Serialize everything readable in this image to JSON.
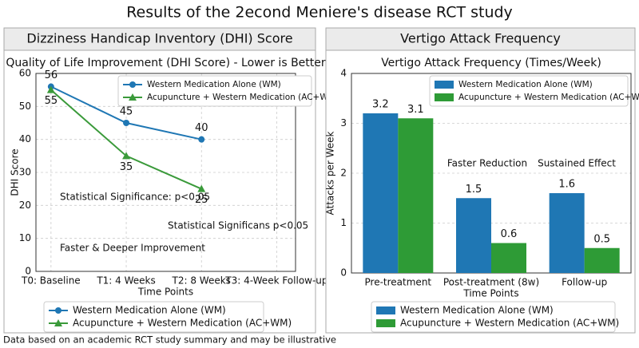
{
  "title": "Results of the 2econd Meniere's disease RCT study",
  "footnote": "Data based on an academic RCT study summary and may be illustrative",
  "chart_data": [
    {
      "type": "line",
      "panel_title": "Dizziness Handicap Inventory (DHI) Score",
      "title": "Quality of Life Improvement (DHI Score) - Lower is Better",
      "x_label": "Time Points",
      "y_label": "DHI Score",
      "categories": [
        "T0: Baseline",
        "T1: 4 Weeks",
        "T2: 8 Weeks",
        "T3: 4-Week Follow-up"
      ],
      "series": [
        {
          "name": "Western Medication Alone (WM)",
          "color": "#1f77b4",
          "marker": "circle",
          "values": [
            56,
            45,
            40,
            null
          ]
        },
        {
          "name": "Acupuncture + Western Medication (AC+WM)",
          "color": "#3a9a3a",
          "marker": "triangle",
          "values": [
            55,
            35,
            25,
            null
          ]
        }
      ],
      "ylim": [
        0,
        60
      ],
      "yticks": [
        0,
        10,
        20,
        30,
        40,
        50,
        60
      ],
      "grid": true,
      "annotations": [
        "Statistical Significance: p<0.05",
        "Statistical Significans p<0.05",
        "Faster & Deeper Improvement"
      ]
    },
    {
      "type": "bar",
      "panel_title": "Vertigo Attack Frequency",
      "title": "Vertigo Attack Frequency (Times/Week)",
      "x_label": "Time Points",
      "y_label": "Attacks per Week",
      "categories": [
        "Pre-treatment",
        "Post-treatment (8w)",
        "Follow-up"
      ],
      "series": [
        {
          "name": "Western Medication Alone (WM)",
          "color": "#1f77b4",
          "values": [
            3.2,
            1.5,
            1.6
          ]
        },
        {
          "name": "Acupuncture + Western Medication (AC+WM)",
          "color": "#2e9b36",
          "values": [
            3.1,
            0.6,
            0.5
          ]
        }
      ],
      "ylim": [
        0,
        4
      ],
      "yticks": [
        0,
        1,
        2,
        3,
        4
      ],
      "grid": true,
      "annotations": [
        "Faster Reduction",
        "Sustained Effect"
      ]
    }
  ]
}
